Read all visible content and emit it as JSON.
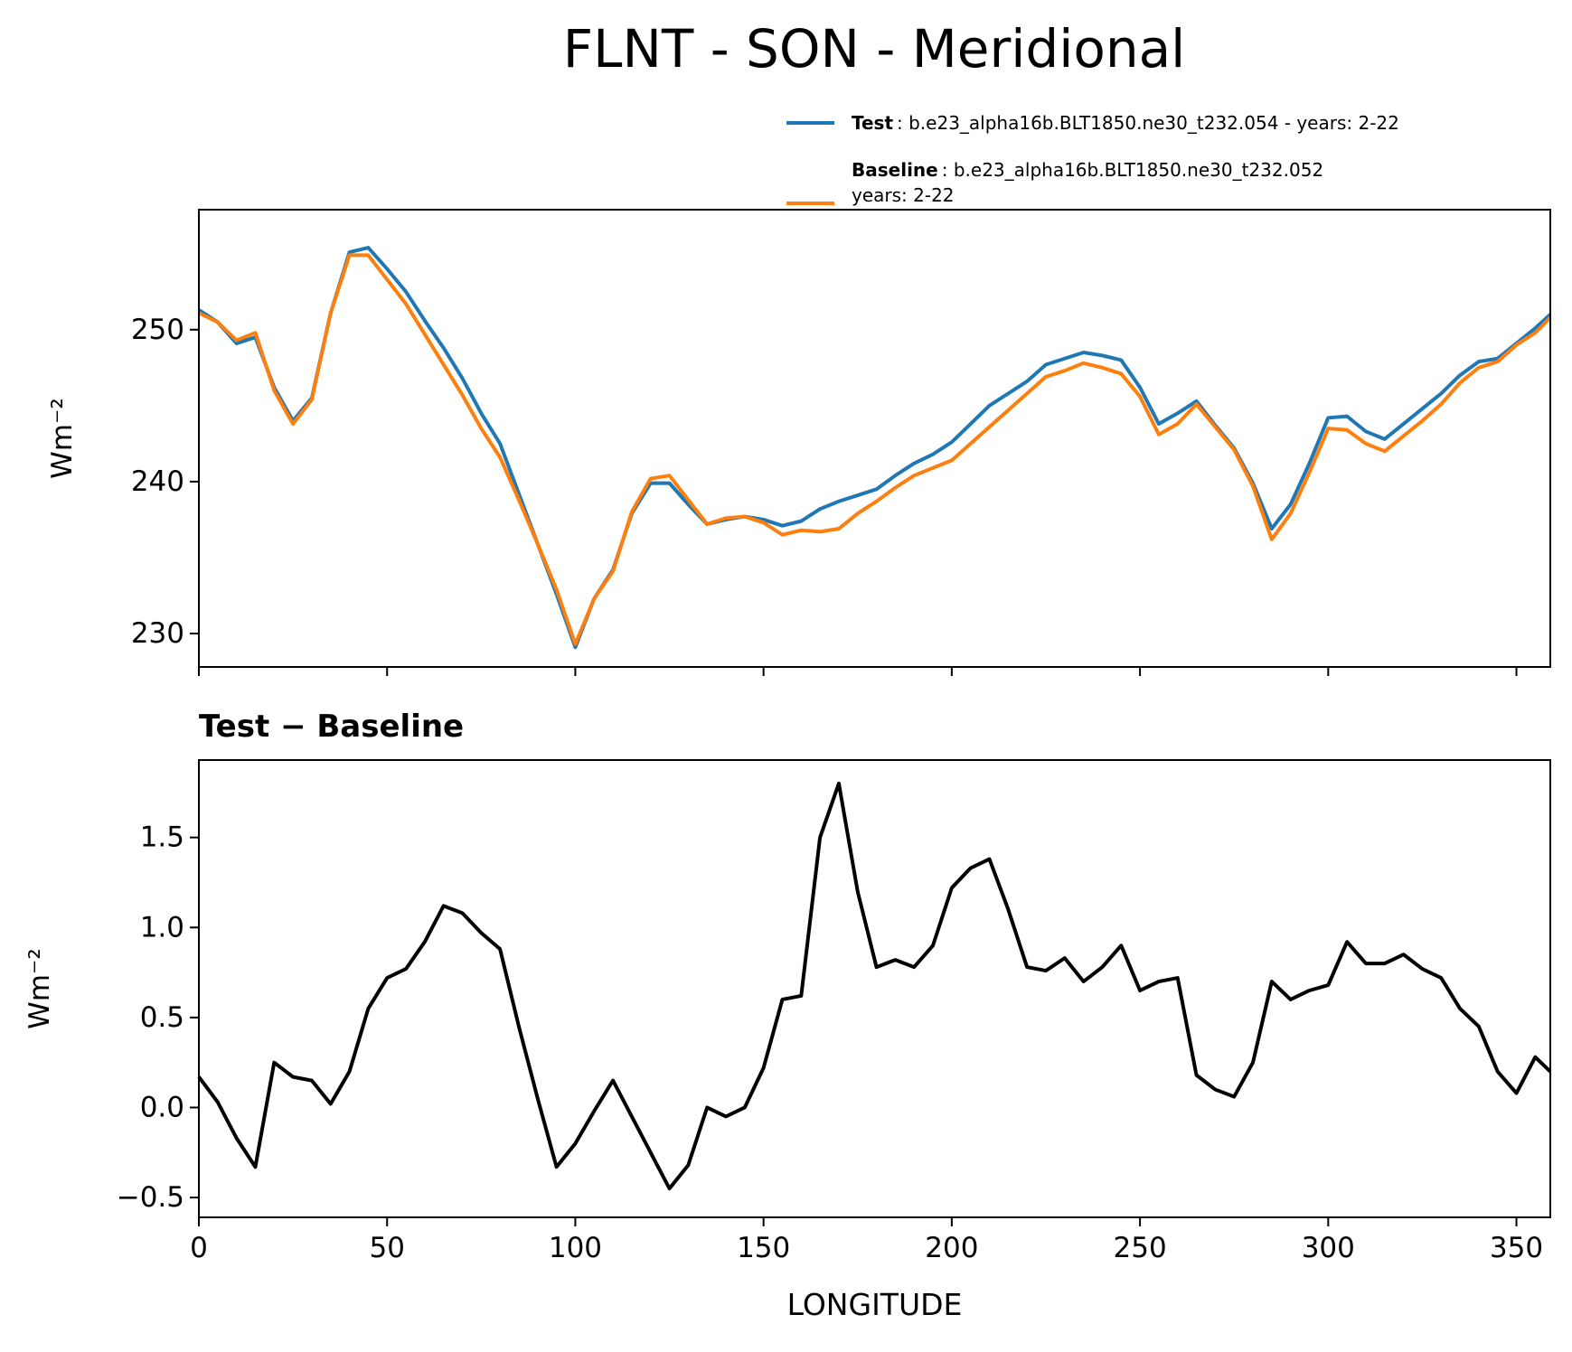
{
  "chart_data": [
    {
      "type": "line",
      "title": "FLNT - SON - Meridional",
      "ylabel": "Wm⁻²",
      "x": [
        0,
        5,
        10,
        15,
        20,
        25,
        30,
        35,
        40,
        45,
        50,
        55,
        60,
        65,
        70,
        75,
        80,
        85,
        90,
        95,
        100,
        105,
        110,
        115,
        120,
        125,
        130,
        135,
        140,
        145,
        150,
        155,
        160,
        165,
        170,
        175,
        180,
        185,
        190,
        195,
        200,
        205,
        210,
        215,
        220,
        225,
        230,
        235,
        240,
        245,
        250,
        255,
        260,
        265,
        270,
        275,
        280,
        285,
        290,
        295,
        300,
        305,
        310,
        315,
        320,
        325,
        330,
        335,
        340,
        345,
        350,
        355,
        359
      ],
      "series": [
        {
          "name": "Test",
          "description": [
            ": b.e23_alpha16b.BLT1850.ne30_t232.054 - years: 2-22"
          ],
          "color": "#1f77b4",
          "values": [
            251.3,
            250.5,
            249.1,
            249.5,
            246.2,
            244.0,
            245.5,
            251.1,
            255.1,
            255.4,
            254.0,
            252.5,
            250.6,
            248.8,
            246.8,
            244.5,
            242.5,
            239.2,
            235.9,
            232.6,
            229.1,
            232.3,
            234.2,
            237.9,
            239.9,
            239.9,
            238.5,
            237.2,
            237.5,
            237.7,
            237.5,
            237.1,
            237.4,
            238.2,
            238.7,
            239.1,
            239.5,
            240.4,
            241.2,
            241.8,
            242.6,
            243.8,
            245.0,
            245.8,
            246.6,
            247.7,
            248.1,
            248.5,
            248.3,
            248.0,
            246.2,
            243.8,
            244.5,
            245.3,
            243.7,
            242.2,
            239.9,
            236.9,
            238.5,
            241.2,
            244.2,
            244.3,
            243.3,
            242.8,
            243.8,
            244.8,
            245.8,
            247.0,
            247.9,
            248.1,
            249.1,
            250.1,
            251.0
          ]
        },
        {
          "name": "Baseline",
          "description": [
            ": b.e23_alpha16b.BLT1850.ne30_t232.052",
            "years: 2-22"
          ],
          "color": "#ff7f0e",
          "values": [
            251.1,
            250.5,
            249.3,
            249.8,
            246.0,
            243.8,
            245.4,
            251.1,
            254.9,
            254.9,
            253.3,
            251.7,
            249.7,
            247.7,
            245.7,
            243.5,
            241.6,
            238.8,
            235.9,
            232.9,
            229.3,
            232.3,
            234.1,
            238.0,
            240.2,
            240.4,
            238.8,
            237.2,
            237.6,
            237.7,
            237.3,
            236.5,
            236.8,
            236.7,
            236.9,
            237.9,
            238.7,
            239.6,
            240.4,
            240.9,
            241.4,
            242.5,
            243.6,
            244.7,
            245.8,
            246.9,
            247.3,
            247.8,
            247.5,
            247.1,
            245.6,
            243.1,
            243.8,
            245.1,
            243.6,
            242.1,
            239.7,
            236.2,
            237.9,
            240.6,
            243.5,
            243.4,
            242.5,
            242.0,
            243.0,
            244.0,
            245.1,
            246.5,
            247.5,
            247.9,
            249.0,
            249.8,
            250.8
          ]
        }
      ],
      "xlim": [
        0,
        359
      ],
      "xticks": [
        0,
        50,
        100,
        150,
        200,
        250,
        300,
        350
      ],
      "xtick_labels": false,
      "ylim": [
        227.8,
        257.9
      ],
      "yticks": [
        230,
        240,
        250
      ],
      "legend": "upper right outside"
    },
    {
      "type": "line",
      "subtitle": "Test − Baseline",
      "xlabel": "LONGITUDE",
      "ylabel": "Wm⁻²",
      "x": [
        0,
        5,
        10,
        15,
        20,
        25,
        30,
        35,
        40,
        45,
        50,
        55,
        60,
        65,
        70,
        75,
        80,
        85,
        90,
        95,
        100,
        105,
        110,
        115,
        120,
        125,
        130,
        135,
        140,
        145,
        150,
        155,
        160,
        165,
        170,
        175,
        180,
        185,
        190,
        195,
        200,
        205,
        210,
        215,
        220,
        225,
        230,
        235,
        240,
        245,
        250,
        255,
        260,
        265,
        270,
        275,
        280,
        285,
        290,
        295,
        300,
        305,
        310,
        315,
        320,
        325,
        330,
        335,
        340,
        345,
        350,
        355,
        359
      ],
      "color": "#000000",
      "values": [
        0.17,
        0.03,
        -0.17,
        -0.33,
        0.25,
        0.17,
        0.15,
        0.02,
        0.2,
        0.55,
        0.72,
        0.77,
        0.92,
        1.12,
        1.08,
        0.97,
        0.88,
        0.45,
        0.05,
        -0.33,
        -0.2,
        -0.02,
        0.15,
        -0.05,
        -0.25,
        -0.45,
        -0.32,
        0.0,
        -0.05,
        0.0,
        0.22,
        0.6,
        0.62,
        1.5,
        1.8,
        1.2,
        0.78,
        0.82,
        0.78,
        0.9,
        1.22,
        1.33,
        1.38,
        1.1,
        0.78,
        0.76,
        0.83,
        0.7,
        0.78,
        0.9,
        0.65,
        0.7,
        0.72,
        0.18,
        0.1,
        0.06,
        0.25,
        0.7,
        0.6,
        0.65,
        0.68,
        0.92,
        0.8,
        0.8,
        0.85,
        0.77,
        0.72,
        0.55,
        0.45,
        0.2,
        0.08,
        0.28,
        0.2
      ],
      "xlim": [
        0,
        359
      ],
      "xticks": [
        0,
        50,
        100,
        150,
        200,
        250,
        300,
        350
      ],
      "xtick_labels": true,
      "ylim": [
        -0.61,
        1.93
      ],
      "yticks": [
        {
          "value": -0.5,
          "label": "−0.5"
        },
        {
          "value": 0,
          "label": "0.0"
        },
        {
          "value": 0.5,
          "label": "0.5"
        },
        {
          "value": 1,
          "label": "1.0"
        },
        {
          "value": 1.5,
          "label": "1.5"
        }
      ]
    }
  ]
}
